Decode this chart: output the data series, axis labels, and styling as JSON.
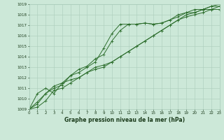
{
  "title": "Graphe pression niveau de la mer (hPa)",
  "bg_color": "#cce8d8",
  "grid_color": "#aaccbb",
  "line_color": "#2d6e2d",
  "text_color": "#1a3a1a",
  "xmin": 0,
  "xmax": 23,
  "ymin": 1009,
  "ymax": 1019,
  "series": [
    [
      1009.0,
      1009.7,
      1010.5,
      1011.0,
      1011.3,
      1012.2,
      1012.8,
      1013.1,
      1013.8,
      1014.2,
      1015.5,
      1016.5,
      1017.1,
      1017.1,
      1017.2,
      1017.1,
      1017.2,
      1017.5,
      1017.8,
      1018.2,
      1018.2,
      1018.5,
      1018.5,
      1018.5
    ],
    [
      1009.0,
      1010.5,
      1011.0,
      1010.5,
      1011.5,
      1012.2,
      1012.5,
      1013.0,
      1013.5,
      1014.8,
      1016.2,
      1017.1,
      1017.1,
      1017.1,
      1017.2,
      1017.1,
      1017.2,
      1017.5,
      1018.0,
      1018.2,
      1018.5,
      1018.5,
      1018.8,
      1018.8
    ],
    [
      1009.0,
      1009.5,
      1010.5,
      1011.2,
      1011.5,
      1011.8,
      1012.0,
      1012.5,
      1012.8,
      1013.0,
      1013.5,
      1014.0,
      1014.5,
      1015.0,
      1015.5,
      1016.0,
      1016.5,
      1017.0,
      1017.5,
      1017.8,
      1018.0,
      1018.2,
      1018.5,
      1018.8
    ],
    [
      1009.0,
      1009.2,
      1009.8,
      1010.8,
      1011.0,
      1011.5,
      1012.0,
      1012.5,
      1013.0,
      1013.2,
      1013.5,
      1014.0,
      1014.5,
      1015.0,
      1015.5,
      1016.0,
      1016.5,
      1017.0,
      1017.5,
      1018.0,
      1018.2,
      1018.5,
      1018.8,
      1019.0
    ]
  ]
}
